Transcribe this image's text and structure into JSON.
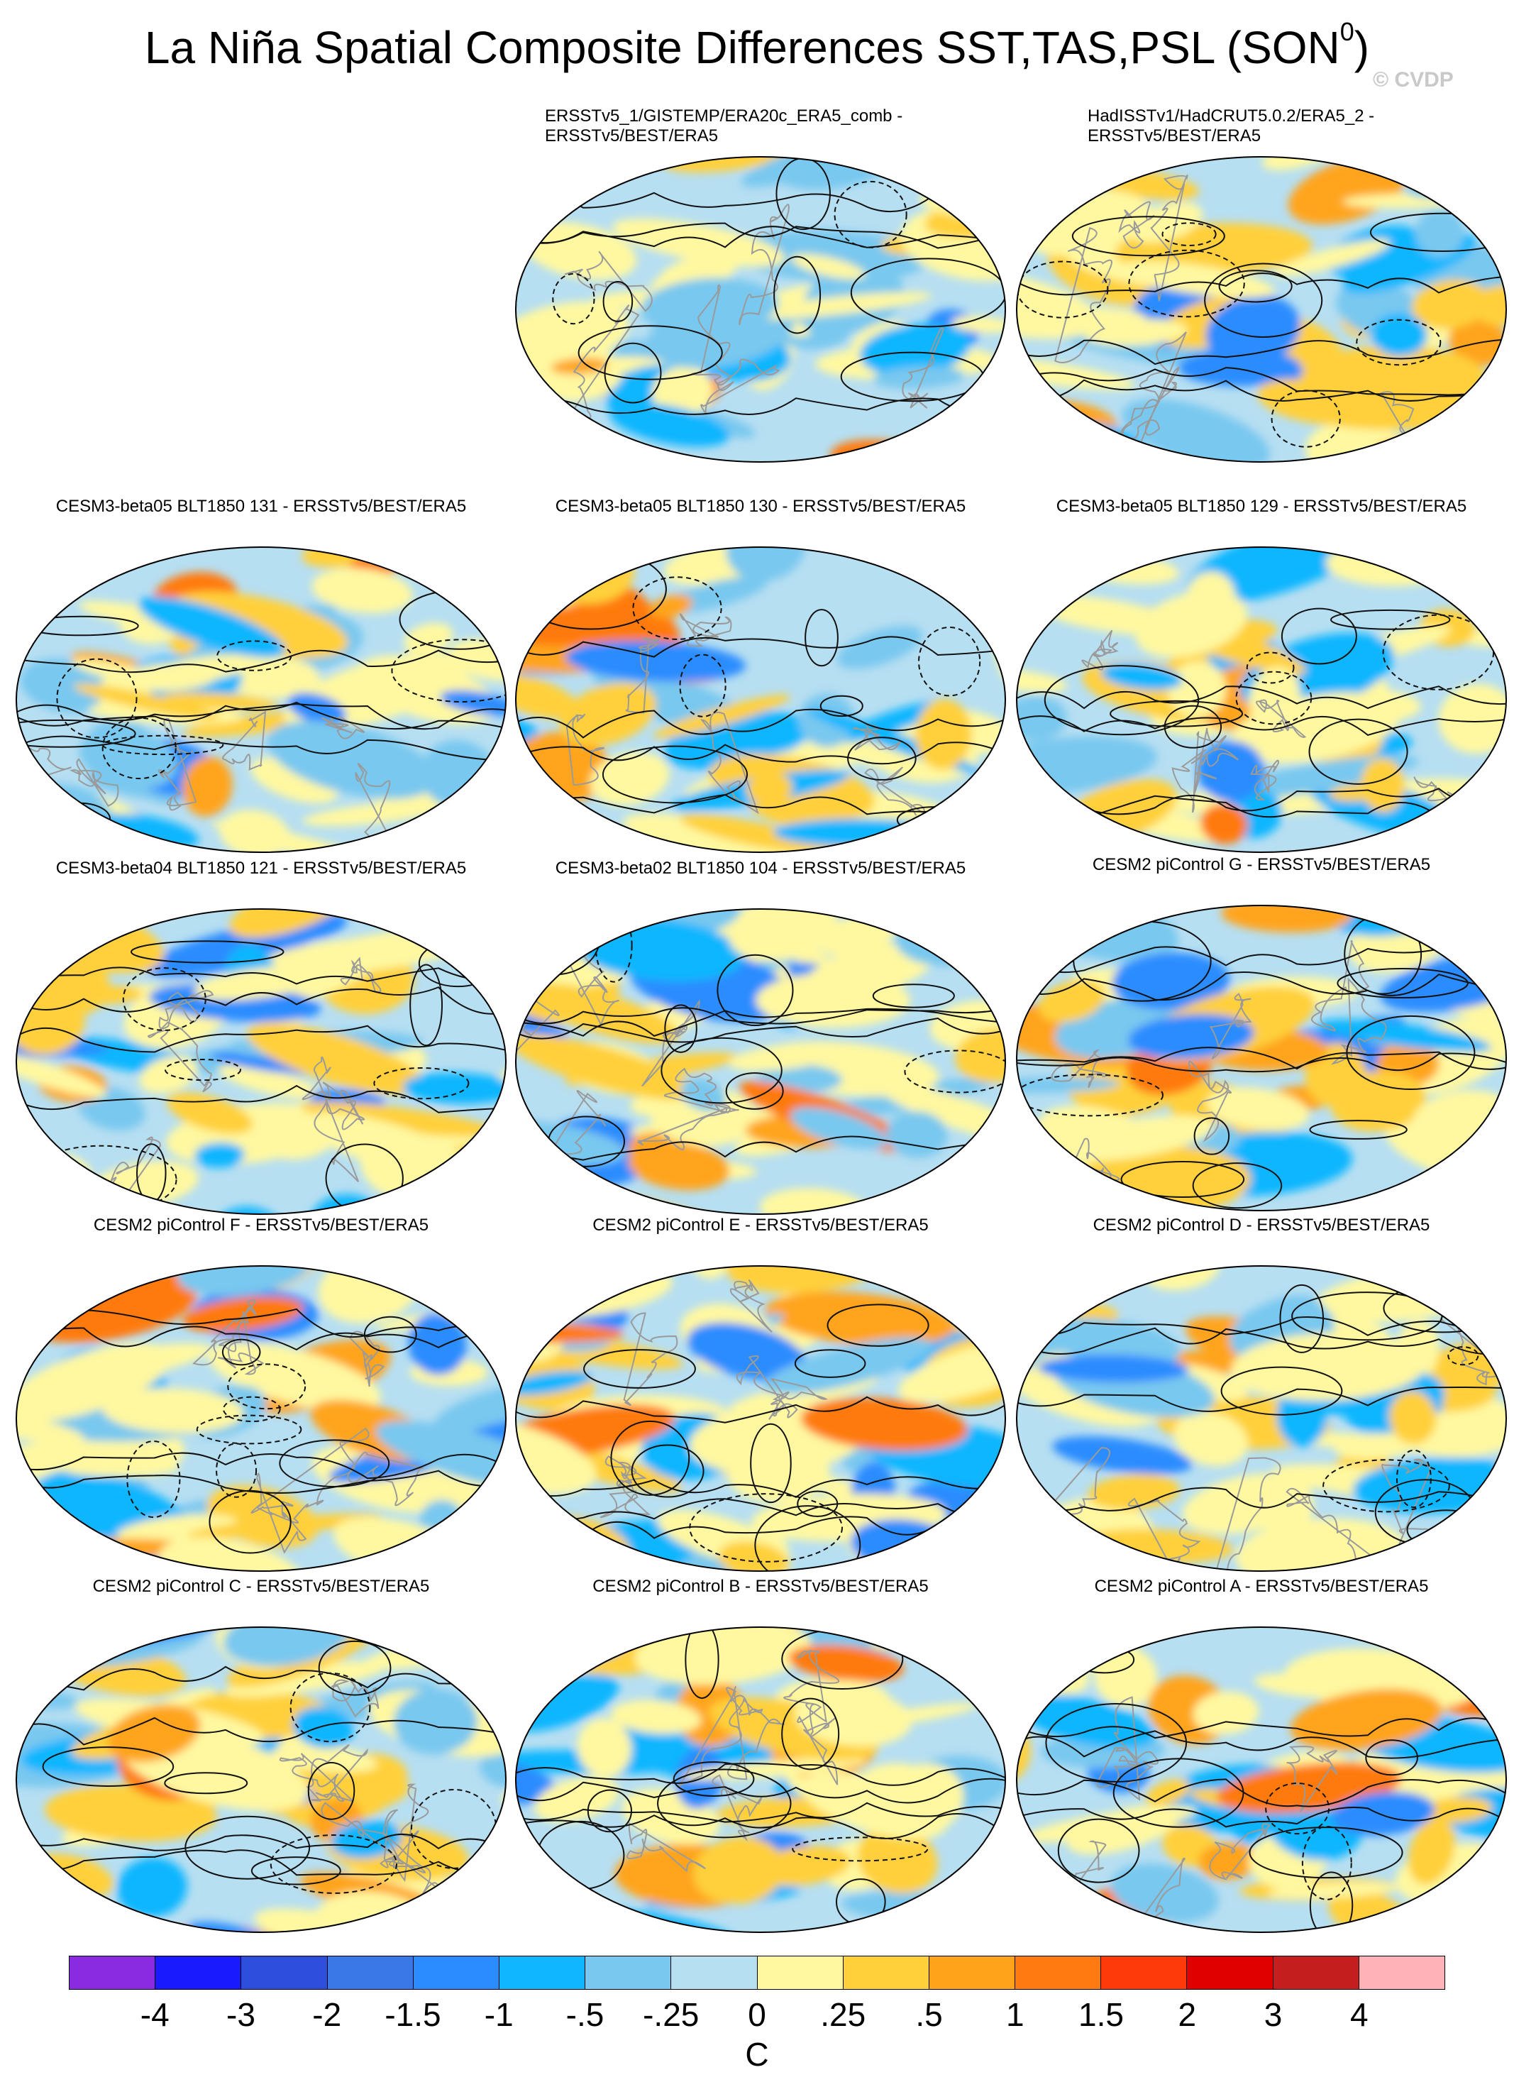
{
  "title_main": "La Niña Spatial Composite Differences SST,TAS,PSL (SON",
  "title_sup": "0",
  "title_end": ")",
  "watermark": "© CVDP",
  "panels": [
    {
      "title": "ERSSTv5_1/GISTEMP/ERA20c_ERA5_comb -\nERSSTv5/BEST/ERA5",
      "align": "left"
    },
    {
      "title": "HadISSTv1/HadCRUT5.0.2/ERA5_2 -\nERSSTv5/BEST/ERA5",
      "align": "left"
    },
    {
      "title": "CESM3-beta05 BLT1850 131 - ERSSTv5/BEST/ERA5"
    },
    {
      "title": "CESM3-beta05 BLT1850 130 - ERSSTv5/BEST/ERA5"
    },
    {
      "title": "CESM3-beta05 BLT1850 129 - ERSSTv5/BEST/ERA5"
    },
    {
      "title": "CESM3-beta04 BLT1850 121 - ERSSTv5/BEST/ERA5"
    },
    {
      "title": "CESM3-beta02 BLT1850 104 - ERSSTv5/BEST/ERA5"
    },
    {
      "title": "CESM2 piControl G - ERSSTv5/BEST/ERA5"
    },
    {
      "title": "CESM2 piControl F - ERSSTv5/BEST/ERA5"
    },
    {
      "title": "CESM2 piControl E - ERSSTv5/BEST/ERA5"
    },
    {
      "title": "CESM2 piControl D - ERSSTv5/BEST/ERA5"
    },
    {
      "title": "CESM2 piControl C - ERSSTv5/BEST/ERA5"
    },
    {
      "title": "CESM2 piControl B - ERSSTv5/BEST/ERA5"
    },
    {
      "title": "CESM2 piControl A - ERSSTv5/BEST/ERA5"
    }
  ],
  "colorbar": {
    "colors": [
      "#8a2be2",
      "#1a1aff",
      "#2d4fdc",
      "#3a78e8",
      "#2b8cff",
      "#10b6ff",
      "#79c8ef",
      "#b7dff2",
      "#fff8a0",
      "#ffd03a",
      "#ffa41a",
      "#ff7a10",
      "#ff3a0a",
      "#e00000",
      "#c41e1e",
      "#ffb3b8"
    ],
    "labels": [
      "-4",
      "-3",
      "-2",
      "-1.5",
      "-1",
      "-.5",
      "-.25",
      "0",
      ".25",
      ".5",
      "1",
      "1.5",
      "2",
      "3",
      "4"
    ],
    "units": "C"
  }
}
